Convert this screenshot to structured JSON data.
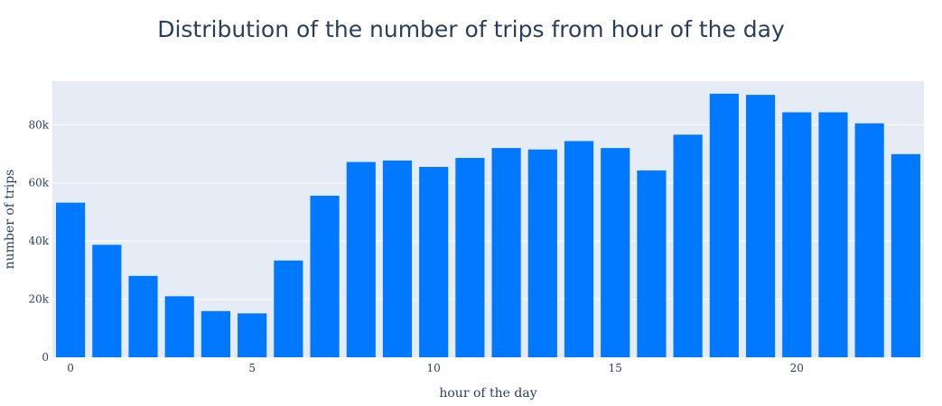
{
  "chart_data": {
    "type": "bar",
    "title": "Distribution of the number of trips from hour of the day",
    "xlabel": "hour of the day",
    "ylabel": "number of trips",
    "x": [
      0,
      1,
      2,
      3,
      4,
      5,
      6,
      7,
      8,
      9,
      10,
      11,
      12,
      13,
      14,
      15,
      16,
      17,
      18,
      19,
      20,
      21,
      22,
      23
    ],
    "values": [
      53200,
      38700,
      28000,
      21000,
      15900,
      15100,
      33300,
      55600,
      67200,
      67700,
      65500,
      68600,
      72000,
      71500,
      74400,
      72000,
      64300,
      76600,
      90700,
      90300,
      84300,
      84300,
      80500,
      69900
    ],
    "ylim": [
      0,
      95000
    ],
    "xlim": [
      -0.5,
      23.5
    ],
    "yticks": [
      0,
      20000,
      40000,
      60000,
      80000
    ],
    "ytick_labels": [
      "0",
      "20k",
      "40k",
      "60k",
      "80k"
    ],
    "xticks": [
      0,
      5,
      10,
      15,
      20
    ],
    "xtick_labels": [
      "0",
      "5",
      "10",
      "15",
      "20"
    ],
    "grid": true,
    "colors": {
      "bar": "#0078ff",
      "plot_background": "#e5ecf6",
      "grid": "#ffffff",
      "text": "#2a3f5f"
    }
  }
}
